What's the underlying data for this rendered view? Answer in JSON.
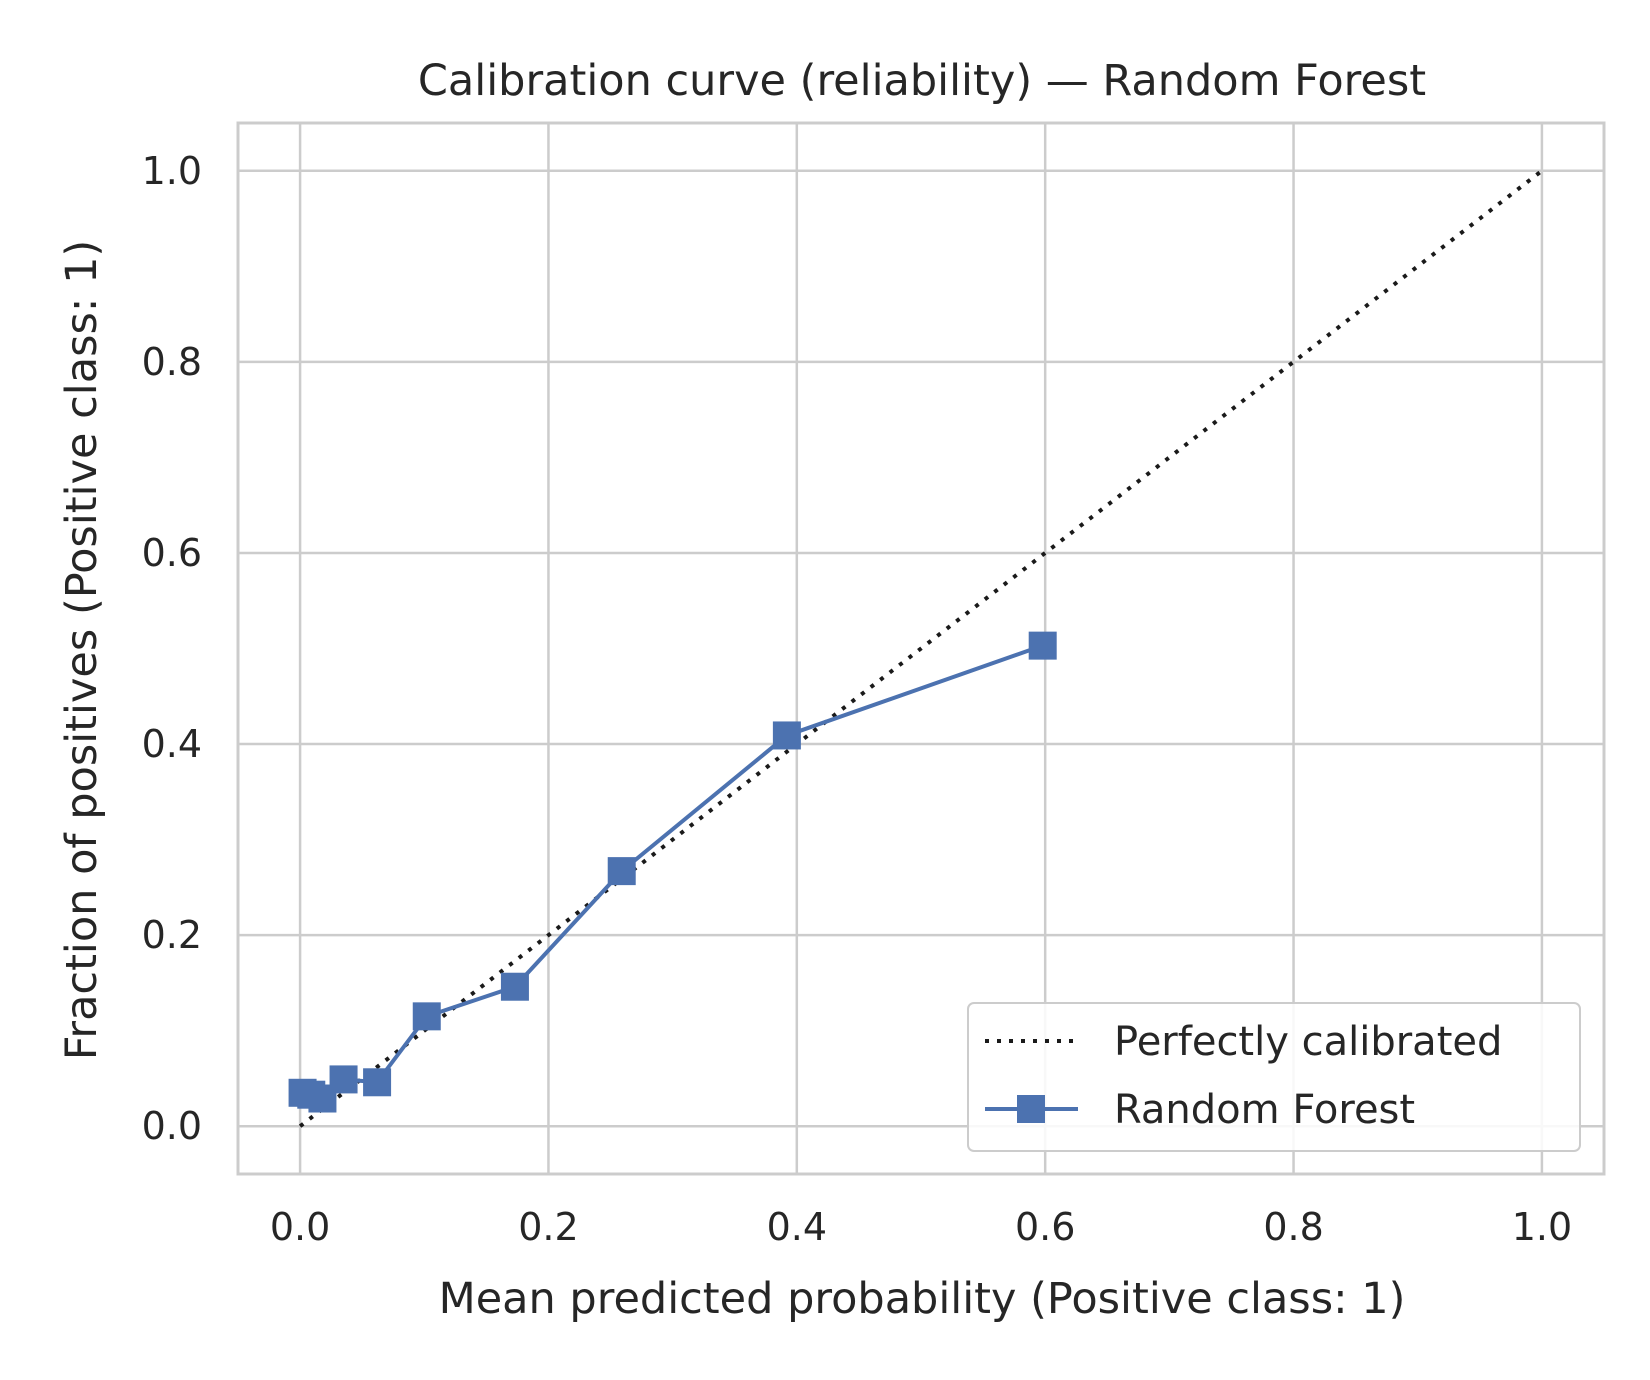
{
  "chart_data": {
    "type": "line",
    "title": "Calibration curve (reliability) — Random Forest",
    "xlabel": "Mean predicted probability (Positive class: 1)",
    "ylabel": "Fraction of positives (Positive class: 1)",
    "xlim": [
      -0.05,
      1.05
    ],
    "ylim": [
      -0.05,
      1.05
    ],
    "x_ticks": [
      "0.0",
      "0.2",
      "0.4",
      "0.6",
      "0.8",
      "1.0"
    ],
    "y_ticks": [
      "0.0",
      "0.2",
      "0.4",
      "0.6",
      "0.8",
      "1.0"
    ],
    "grid": true,
    "legend_position": "bottom-right",
    "series": [
      {
        "name": "Perfectly calibrated",
        "style": "dotted",
        "color": "#1a1a1a",
        "x": [
          0.0,
          1.0
        ],
        "y": [
          0.0,
          1.0
        ]
      },
      {
        "name": "Random Forest",
        "style": "solid",
        "marker": "square",
        "color": "#4c72b0",
        "x": [
          0.002,
          0.009,
          0.018,
          0.035,
          0.062,
          0.102,
          0.173,
          0.259,
          0.392,
          0.598
        ],
        "y": [
          0.035,
          0.033,
          0.029,
          0.049,
          0.046,
          0.115,
          0.146,
          0.267,
          0.409,
          0.503
        ]
      }
    ]
  }
}
